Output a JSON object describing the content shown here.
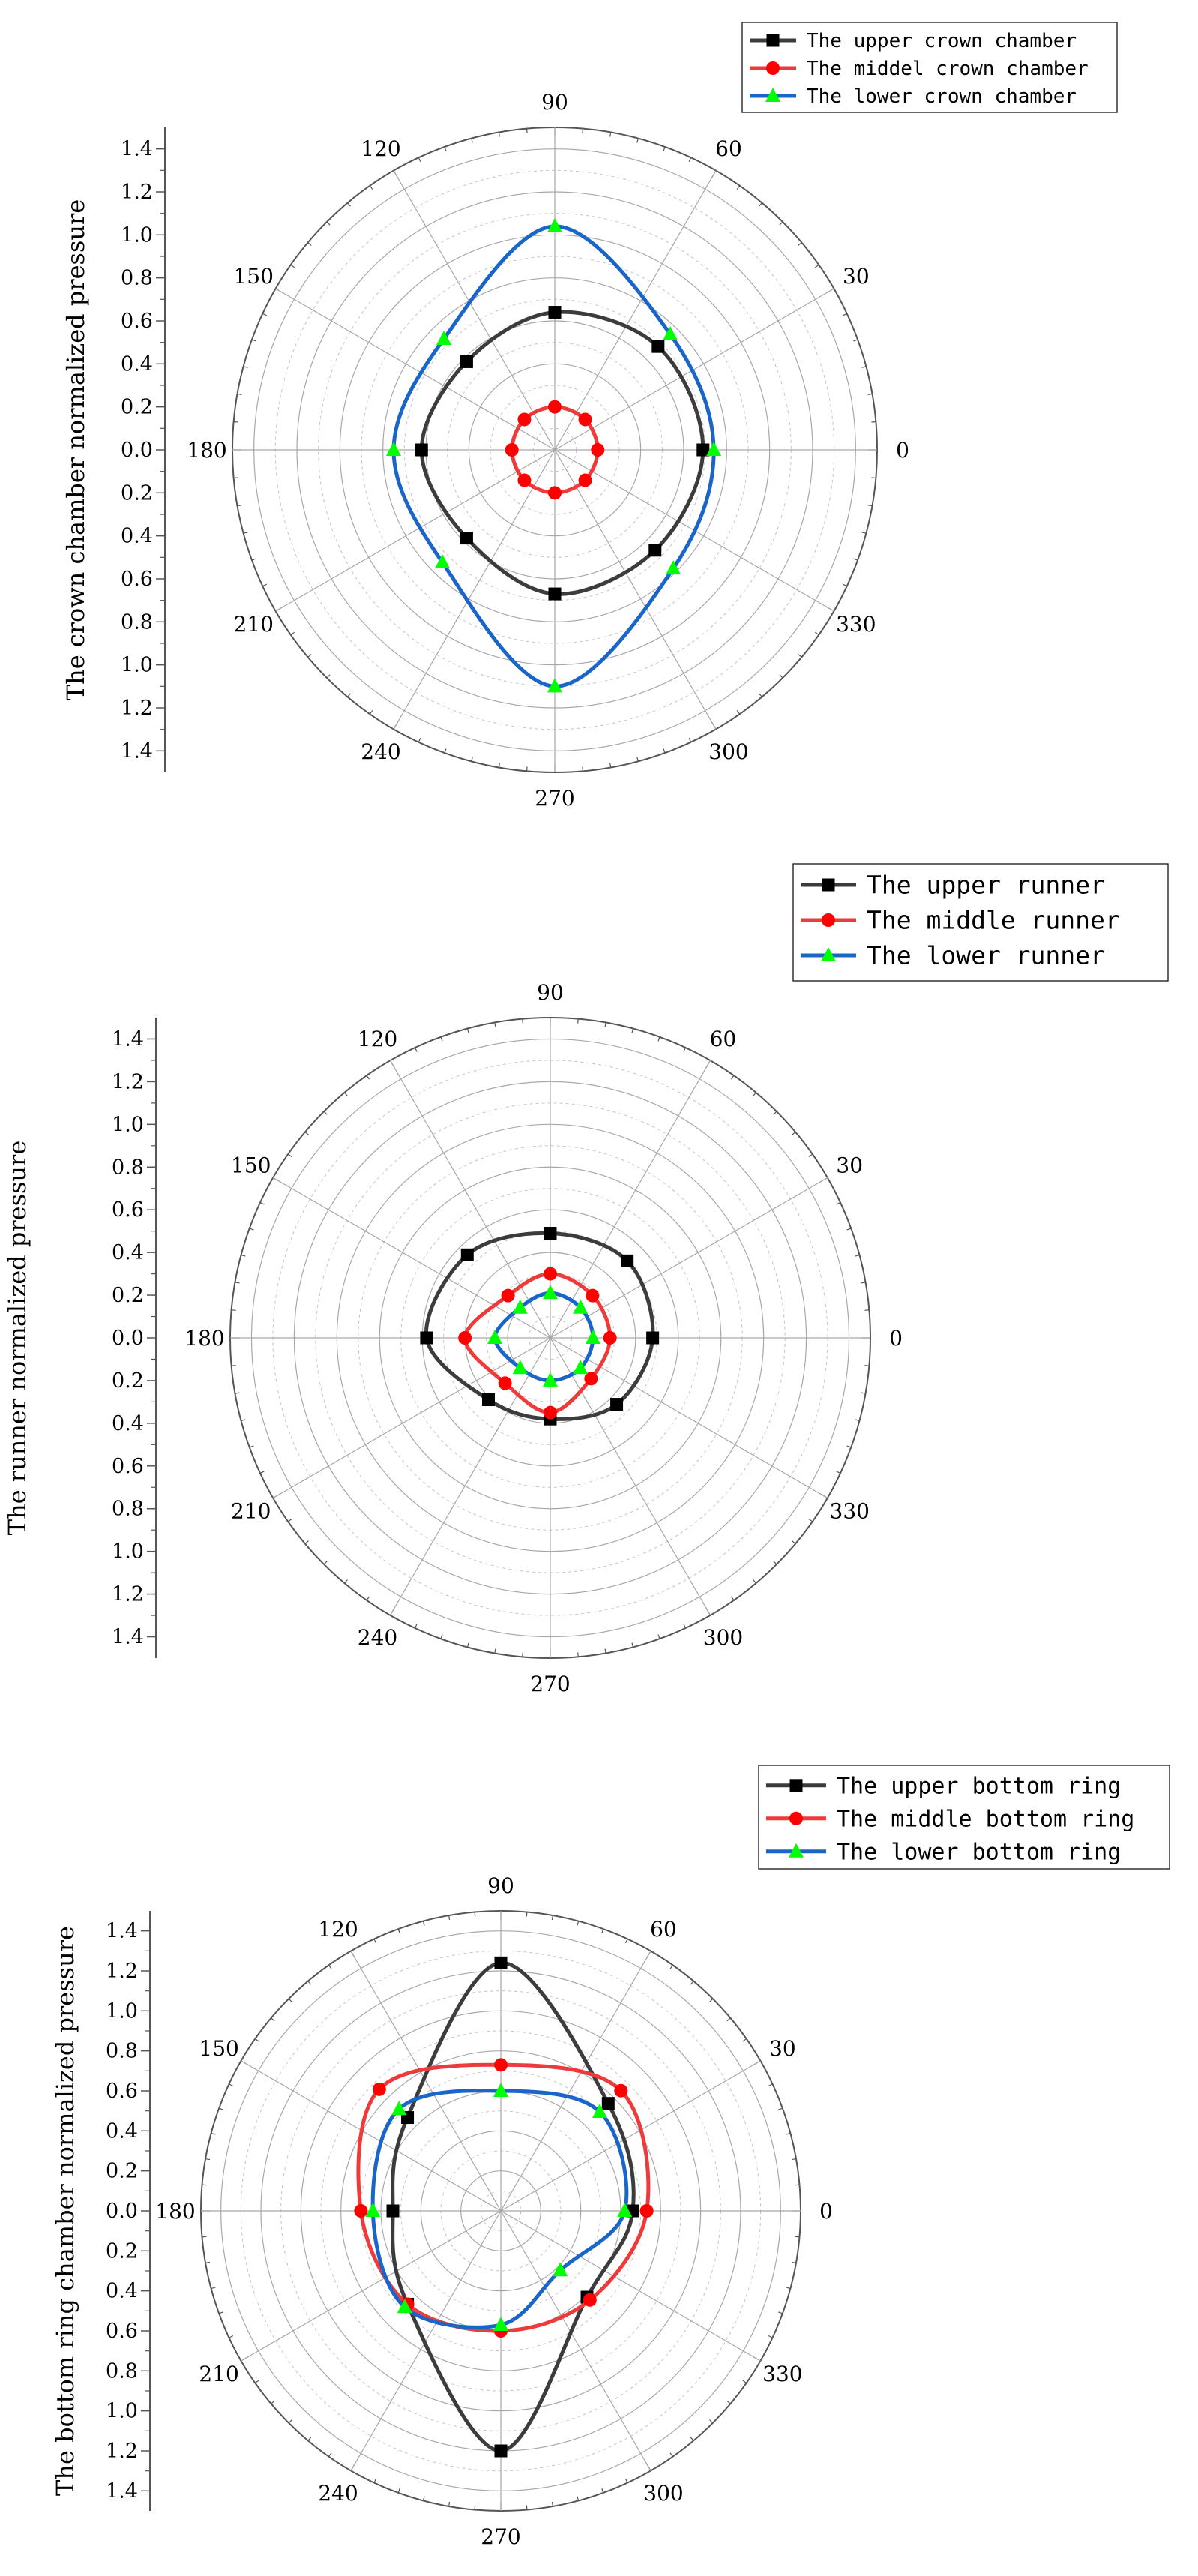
{
  "chart_data": [
    {
      "type": "polar-line",
      "ylabel": "The crown chamber normalized pressure",
      "angle_labels": [
        "0",
        "30",
        "60",
        "90",
        "120",
        "150",
        "180",
        "210",
        "240",
        "270",
        "300",
        "330"
      ],
      "radial_ticks": [
        "1.4",
        "1.2",
        "1.0",
        "0.8",
        "0.6",
        "0.4",
        "0.2",
        "0.0",
        "0.2",
        "0.4",
        "0.6",
        "0.8",
        "1.0",
        "1.2",
        "1.4"
      ],
      "rlim": [
        0,
        1.5
      ],
      "angles": [
        0,
        45,
        90,
        135,
        180,
        225,
        270,
        315
      ],
      "series": [
        {
          "name": "The upper crown chamber",
          "color": "#3c3c3c",
          "marker": "square",
          "values": [
            0.69,
            0.68,
            0.64,
            0.58,
            0.62,
            0.58,
            0.67,
            0.66
          ]
        },
        {
          "name": "The middel crown chamber",
          "color": "#ee3a3a",
          "marker": "circle",
          "values": [
            0.2,
            0.2,
            0.2,
            0.2,
            0.2,
            0.2,
            0.2,
            0.2
          ]
        },
        {
          "name": "The lower crown chamber",
          "color": "#1a66c8",
          "marker": "triangle",
          "values": [
            0.74,
            0.76,
            1.04,
            0.73,
            0.75,
            0.74,
            1.1,
            0.78
          ]
        }
      ]
    },
    {
      "type": "polar-line",
      "ylabel": "The runner normalized pressure",
      "angle_labels": [
        "0",
        "30",
        "60",
        "90",
        "120",
        "150",
        "180",
        "210",
        "240",
        "270",
        "300",
        "330"
      ],
      "radial_ticks": [
        "1.4",
        "1.2",
        "1.0",
        "0.8",
        "0.6",
        "0.4",
        "0.2",
        "0.0",
        "0.2",
        "0.4",
        "0.6",
        "0.8",
        "1.0",
        "1.2",
        "1.4"
      ],
      "rlim": [
        0,
        1.5
      ],
      "angles": [
        0,
        45,
        90,
        135,
        180,
        225,
        270,
        315
      ],
      "series": [
        {
          "name": "The upper runner",
          "color": "#3c3c3c",
          "marker": "square",
          "values": [
            0.48,
            0.51,
            0.49,
            0.55,
            0.58,
            0.41,
            0.38,
            0.44
          ]
        },
        {
          "name": "The middle runner",
          "color": "#ee3a3a",
          "marker": "circle",
          "values": [
            0.28,
            0.28,
            0.3,
            0.28,
            0.4,
            0.3,
            0.35,
            0.27
          ]
        },
        {
          "name": "The lower runner",
          "color": "#1a66c8",
          "marker": "triangle",
          "values": [
            0.2,
            0.2,
            0.21,
            0.2,
            0.26,
            0.2,
            0.2,
            0.2
          ]
        }
      ]
    },
    {
      "type": "polar-line",
      "ylabel": "The bottom ring chamber normalized pressure",
      "angle_labels": [
        "0",
        "30",
        "60",
        "90",
        "120",
        "150",
        "180",
        "210",
        "240",
        "270",
        "300",
        "330"
      ],
      "radial_ticks": [
        "1.4",
        "1.2",
        "1.0",
        "0.8",
        "0.6",
        "0.4",
        "0.2",
        "0.0",
        "0.2",
        "0.4",
        "0.6",
        "0.8",
        "1.0",
        "1.2",
        "1.4"
      ],
      "rlim": [
        0,
        1.5
      ],
      "angles": [
        0,
        45,
        90,
        135,
        180,
        225,
        270,
        315
      ],
      "series": [
        {
          "name": "The upper bottom ring",
          "color": "#3c3c3c",
          "marker": "square",
          "values": [
            0.66,
            0.76,
            1.24,
            0.66,
            0.54,
            0.66,
            1.2,
            0.61
          ]
        },
        {
          "name": "The middle bottom ring",
          "color": "#ee3a3a",
          "marker": "circle",
          "values": [
            0.73,
            0.85,
            0.73,
            0.86,
            0.7,
            0.66,
            0.6,
            0.63
          ]
        },
        {
          "name": "The lower bottom ring",
          "color": "#1a66c8",
          "marker": "triangle",
          "values": [
            0.62,
            0.7,
            0.6,
            0.72,
            0.64,
            0.68,
            0.57,
            0.42
          ]
        }
      ]
    }
  ]
}
